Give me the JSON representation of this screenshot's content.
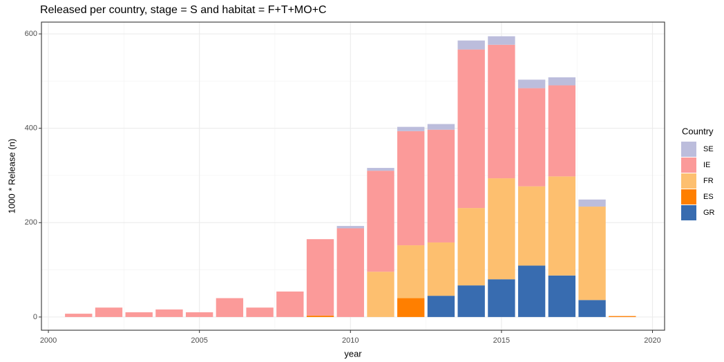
{
  "chart_data": {
    "type": "stacked_bar",
    "title": "Released per country, stage = S and habitat = F+T+MO+C",
    "x_label": "year",
    "y_label": "1000 * Release (n)",
    "legend_title": "Country",
    "x": [
      2001,
      2002,
      2003,
      2004,
      2005,
      2006,
      2007,
      2008,
      2009,
      2010,
      2011,
      2012,
      2013,
      2014,
      2015,
      2016,
      2017,
      2018,
      2019
    ],
    "series": [
      {
        "name": "SE",
        "color": "#bcbddc",
        "values": [
          0,
          0,
          0,
          0,
          0,
          0,
          0,
          0,
          0,
          5,
          6,
          9,
          12,
          19,
          18,
          18,
          17,
          15,
          0
        ]
      },
      {
        "name": "IE",
        "color": "#fb9a99",
        "values": [
          7,
          20,
          10,
          16,
          10,
          40,
          20,
          54,
          162,
          188,
          214,
          242,
          239,
          336,
          283,
          208,
          193,
          0,
          0
        ]
      },
      {
        "name": "FR",
        "color": "#fdbf6f",
        "values": [
          0,
          0,
          0,
          0,
          0,
          0,
          0,
          0,
          0,
          0,
          96,
          112,
          113,
          164,
          214,
          168,
          210,
          198,
          0
        ]
      },
      {
        "name": "ES",
        "color": "#ff7f00",
        "values": [
          0,
          0,
          0,
          0,
          0,
          0,
          0,
          0,
          3,
          0,
          0,
          40,
          0,
          0,
          0,
          0,
          0,
          0,
          2
        ]
      },
      {
        "name": "GR",
        "color": "#386cb0",
        "values": [
          0,
          0,
          0,
          0,
          0,
          0,
          0,
          0,
          0,
          0,
          0,
          0,
          45,
          67,
          80,
          109,
          88,
          36,
          0
        ]
      }
    ],
    "xlim": [
      1999.77,
      2020.4
    ],
    "xticks": [
      2000,
      2005,
      2010,
      2015,
      2020
    ],
    "ylim": [
      -28,
      625
    ],
    "yticks": [
      0,
      200,
      400,
      600
    ],
    "grid": true,
    "legend": "right"
  }
}
